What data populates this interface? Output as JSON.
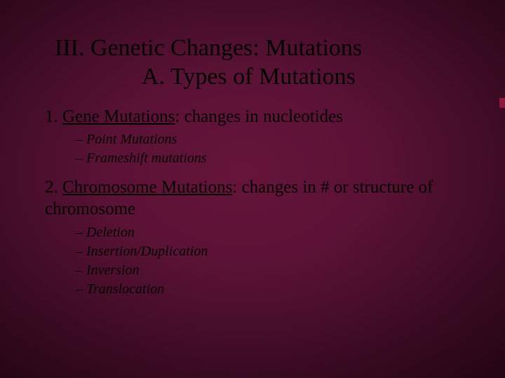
{
  "slide": {
    "title_line1": "III.   Genetic Changes:   Mutations",
    "title_line2": "A.  Types of Mutations",
    "section1": {
      "number": "1.  ",
      "heading": "Gene Mutations",
      "rest": ": changes in nucleotides",
      "subs": [
        "Point Mutations",
        "Frameshift mutations"
      ]
    },
    "section2": {
      "number": "2.  ",
      "heading": "Chromosome Mutations",
      "rest": ": changes in # or structure of chromosome",
      "subs": [
        "Deletion",
        "Insertion/Duplication",
        "Inversion",
        "Translocation"
      ]
    }
  },
  "style": {
    "bg_gradient": {
      "center": "#66143a",
      "mid": "#5a1235",
      "outer": "#370a20",
      "edge": "#220514"
    },
    "text_color": "#000000",
    "accent_color": "#8b1a3e",
    "title_fontsize": 34,
    "body_fontsize": 25,
    "sub_fontsize": 20,
    "font_family": "Times New Roman"
  }
}
